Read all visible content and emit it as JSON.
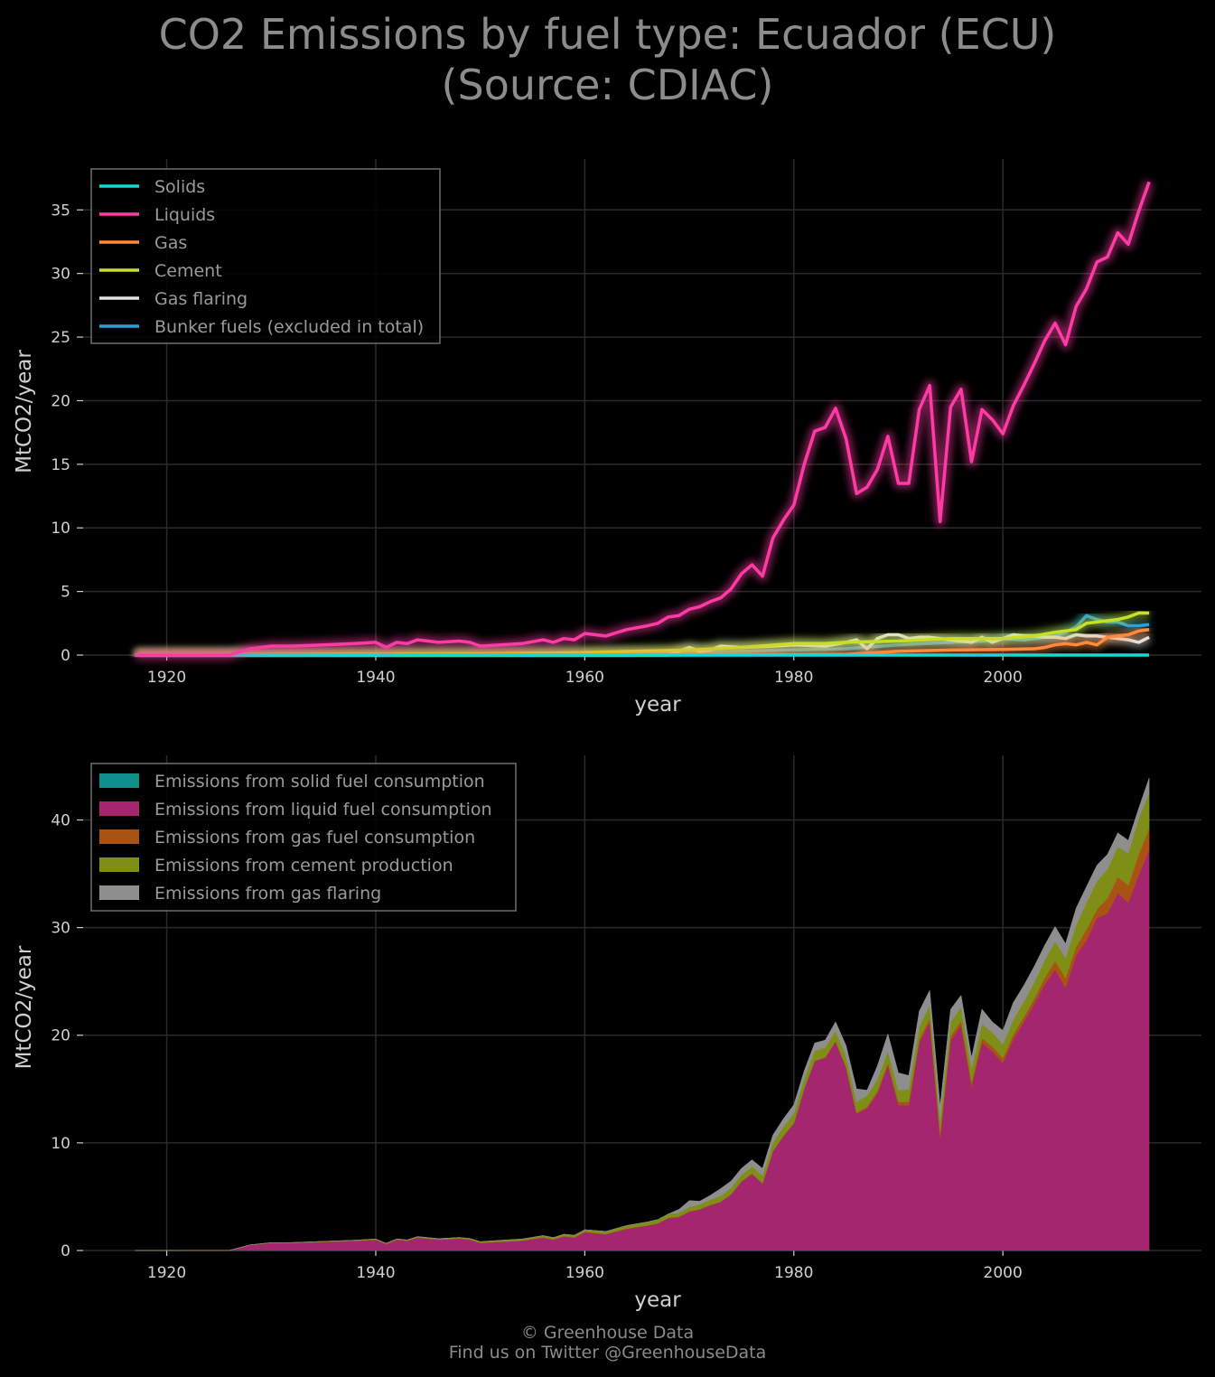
{
  "title": {
    "line1": "CO2 Emissions by fuel type: Ecuador (ECU)",
    "line2": "(Source: CDIAC)"
  },
  "footer": {
    "line1": "© Greenhouse Data",
    "line2": "Find us on Twitter @GreenhouseData"
  },
  "chart_data": [
    {
      "type": "line",
      "xlabel": "year",
      "ylabel": "MtCO2/year",
      "xlim": [
        1912,
        2019
      ],
      "ylim": [
        0,
        39
      ],
      "xticks": [
        1920,
        1940,
        1960,
        1980,
        2000
      ],
      "yticks": [
        0,
        5,
        10,
        15,
        20,
        25,
        30,
        35
      ],
      "grid": true,
      "legend_position": "top-left",
      "series": [
        {
          "name": "Solids",
          "color": "#17d9d3",
          "x": [
            1917,
            2007,
            2008,
            2009,
            2010,
            2014
          ],
          "values": [
            0,
            0,
            0,
            0,
            0,
            0
          ]
        },
        {
          "name": "Liquids",
          "color": "#ff3aa5",
          "x": [
            1917,
            1920,
            1925,
            1926,
            1928,
            1930,
            1932,
            1935,
            1938,
            1940,
            1941,
            1942,
            1943,
            1944,
            1946,
            1948,
            1949,
            1950,
            1952,
            1954,
            1956,
            1957,
            1958,
            1959,
            1960,
            1962,
            1964,
            1966,
            1967,
            1968,
            1969,
            1970,
            1971,
            1972,
            1973,
            1974,
            1975,
            1976,
            1977,
            1978,
            1979,
            1980,
            1981,
            1982,
            1983,
            1984,
            1985,
            1986,
            1987,
            1988,
            1989,
            1990,
            1991,
            1992,
            1993,
            1994,
            1995,
            1996,
            1997,
            1998,
            1999,
            2000,
            2001,
            2002,
            2003,
            2004,
            2005,
            2006,
            2007,
            2008,
            2009,
            2010,
            2011,
            2012,
            2013,
            2014
          ],
          "values": [
            0,
            0,
            0,
            0,
            0.5,
            0.7,
            0.7,
            0.8,
            0.9,
            1.0,
            0.6,
            1.0,
            0.9,
            1.2,
            1.0,
            1.1,
            1.0,
            0.7,
            0.8,
            0.9,
            1.2,
            1.0,
            1.3,
            1.2,
            1.7,
            1.5,
            2.0,
            2.3,
            2.5,
            3.0,
            3.1,
            3.6,
            3.8,
            4.2,
            4.5,
            5.2,
            6.4,
            7.1,
            6.2,
            9.2,
            10.6,
            11.8,
            15.0,
            17.6,
            17.9,
            19.4,
            17.0,
            12.7,
            13.2,
            14.6,
            17.2,
            13.5,
            13.5,
            19.3,
            21.2,
            10.5,
            19.5,
            20.9,
            15.2,
            19.3,
            18.5,
            17.4,
            19.6,
            21.2,
            22.9,
            24.7,
            26.1,
            24.4,
            27.4,
            28.8,
            30.9,
            31.3,
            33.2,
            32.3,
            34.9,
            37.2
          ]
        },
        {
          "name": "Gas",
          "color": "#ff8a3a",
          "x": [
            1917,
            1985,
            1990,
            1995,
            2000,
            2003,
            2004,
            2005,
            2006,
            2007,
            2008,
            2009,
            2010,
            2011,
            2012,
            2013,
            2014
          ],
          "values": [
            0,
            0.05,
            0.3,
            0.4,
            0.45,
            0.5,
            0.6,
            0.8,
            0.9,
            0.8,
            1.0,
            0.8,
            1.4,
            1.5,
            1.6,
            1.9,
            2.0
          ]
        },
        {
          "name": "Cement",
          "color": "#c7e027",
          "x": [
            1917,
            1930,
            1940,
            1950,
            1960,
            1965,
            1970,
            1975,
            1980,
            1983,
            1985,
            1990,
            1995,
            2000,
            2003,
            2005,
            2007,
            2008,
            2009,
            2010,
            2011,
            2012,
            2013,
            2014
          ],
          "values": [
            0,
            0.02,
            0.05,
            0.1,
            0.2,
            0.3,
            0.4,
            0.6,
            0.9,
            0.9,
            1.0,
            1.1,
            1.3,
            1.3,
            1.5,
            1.8,
            2.0,
            2.5,
            2.6,
            2.7,
            2.8,
            3.0,
            3.3,
            3.3
          ]
        },
        {
          "name": "Gas flaring",
          "color": "#e4e4e4",
          "x": [
            1917,
            1968,
            1970,
            1971,
            1972,
            1973,
            1975,
            1978,
            1980,
            1983,
            1985,
            1986,
            1987,
            1988,
            1989,
            1990,
            1991,
            1992,
            1993,
            1994,
            1995,
            1996,
            1997,
            1998,
            1999,
            2000,
            2001,
            2002,
            2003,
            2004,
            2005,
            2006,
            2007,
            2008,
            2009,
            2010,
            2011,
            2012,
            2013,
            2014
          ],
          "values": [
            0,
            0,
            0.6,
            0.3,
            0.4,
            0.7,
            0.6,
            0.7,
            0.8,
            0.7,
            1.0,
            1.2,
            0.5,
            1.3,
            1.6,
            1.6,
            1.3,
            1.4,
            1.4,
            1.3,
            1.2,
            1.1,
            1.0,
            1.4,
            1.0,
            1.3,
            1.6,
            1.5,
            1.5,
            1.4,
            1.4,
            1.3,
            1.6,
            1.5,
            1.5,
            1.4,
            1.3,
            1.2,
            1.0,
            1.4
          ]
        },
        {
          "name": "Bunker fuels (excluded in total)",
          "color": "#2a9fd6",
          "x": [
            1917,
            1970,
            1980,
            1985,
            1990,
            1995,
            1998,
            2000,
            2002,
            2004,
            2005,
            2006,
            2007,
            2008,
            2009,
            2010,
            2011,
            2012,
            2013,
            2014
          ],
          "values": [
            0,
            0.2,
            0.4,
            0.5,
            0.8,
            1.0,
            1.1,
            1.3,
            1.2,
            1.4,
            1.5,
            1.8,
            2.2,
            3.1,
            2.8,
            2.6,
            2.6,
            2.3,
            2.3,
            2.4
          ]
        }
      ]
    },
    {
      "type": "area",
      "stacked": true,
      "xlabel": "year",
      "ylabel": "MtCO2/year",
      "xlim": [
        1912,
        2019
      ],
      "ylim": [
        0,
        46
      ],
      "xticks": [
        1920,
        1940,
        1960,
        1980,
        2000
      ],
      "yticks": [
        0,
        10,
        20,
        30,
        40
      ],
      "grid": true,
      "legend_position": "top-left",
      "series": [
        {
          "name": "Emissions from solid fuel consumption",
          "color": "#0f8f8a",
          "source_series": "Solids"
        },
        {
          "name": "Emissions from liquid fuel consumption",
          "color": "#a3266e",
          "source_series": "Liquids"
        },
        {
          "name": "Emissions from gas fuel consumption",
          "color": "#a85314",
          "source_series": "Gas"
        },
        {
          "name": "Emissions from cement production",
          "color": "#7f8e16",
          "source_series": "Cement"
        },
        {
          "name": "Emissions from gas flaring",
          "color": "#8e8e8e",
          "source_series": "Gas flaring"
        }
      ]
    }
  ]
}
